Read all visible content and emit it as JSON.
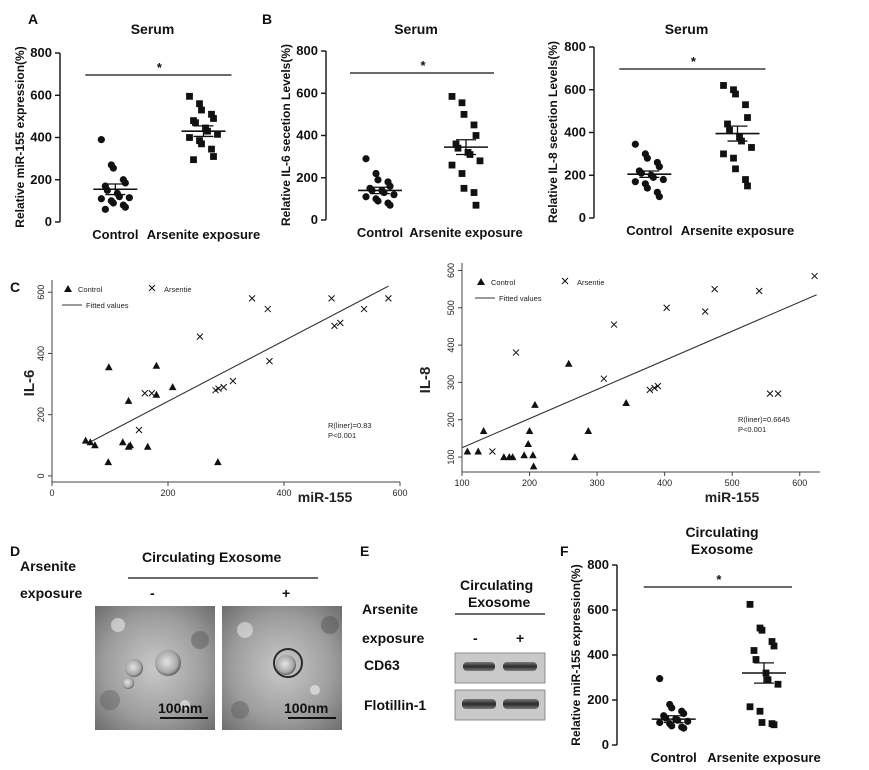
{
  "panel_letters": [
    "A",
    "B",
    "C",
    "D",
    "E",
    "F"
  ],
  "chart_data": [
    {
      "id": "A",
      "type": "scatter",
      "title": "Serum",
      "ylabel": "Relative miR-155 expression(%)",
      "yticks": [
        0,
        200,
        400,
        600,
        800
      ],
      "ylim": [
        0,
        800
      ],
      "categories": [
        "Control",
        "Arsenite exposure"
      ],
      "significance": "*",
      "series": [
        {
          "values": [
            390,
            270,
            255,
            200,
            185,
            170,
            150,
            135,
            120,
            115,
            110,
            100,
            90,
            80,
            70,
            60
          ],
          "mean": 155,
          "sem": 25
        },
        {
          "values": [
            595,
            560,
            530,
            510,
            490,
            480,
            470,
            445,
            430,
            415,
            400,
            385,
            370,
            345,
            310,
            295
          ],
          "mean": 430,
          "sem": 25
        }
      ]
    },
    {
      "id": "B",
      "type": "scatter",
      "title": "Serum",
      "ylabel": "Relative IL-6 secetion Levels(%)",
      "yticks": [
        0,
        200,
        400,
        600,
        800
      ],
      "ylim": [
        0,
        800
      ],
      "categories": [
        "Control",
        "Arsenite exposure"
      ],
      "significance": "*",
      "series": [
        {
          "values": [
            290,
            220,
            190,
            180,
            160,
            150,
            140,
            140,
            130,
            120,
            110,
            100,
            90,
            80,
            70
          ],
          "mean": 140,
          "sem": 15
        },
        {
          "values": [
            585,
            555,
            500,
            450,
            400,
            360,
            340,
            320,
            310,
            280,
            260,
            220,
            150,
            130,
            70
          ],
          "mean": 345,
          "sem": 35
        }
      ]
    },
    {
      "id": "B2",
      "type": "scatter",
      "title": "Serum",
      "ylabel": "Relative IL-8 secetion Levels(%)",
      "yticks": [
        0,
        200,
        400,
        600,
        800
      ],
      "ylim": [
        0,
        800
      ],
      "categories": [
        "Control",
        "Arsenite exposure"
      ],
      "significance": "*",
      "series": [
        {
          "values": [
            345,
            300,
            280,
            260,
            240,
            220,
            210,
            200,
            190,
            180,
            170,
            160,
            140,
            120,
            100
          ],
          "mean": 205,
          "sem": 15
        },
        {
          "values": [
            620,
            600,
            580,
            530,
            470,
            440,
            410,
            380,
            360,
            330,
            300,
            280,
            230,
            180,
            150
          ],
          "mean": 395,
          "sem": 35
        }
      ]
    },
    {
      "id": "C1",
      "type": "scatter",
      "xlabel": "miR-155",
      "ylabel": "IL-6",
      "xticks": [
        0,
        200,
        400,
        600
      ],
      "xlim": [
        0,
        600
      ],
      "yticks": [
        0,
        200,
        400,
        600
      ],
      "ylim": [
        -20,
        640
      ],
      "legend": [
        "Control",
        "Arsentie",
        "Fitted values"
      ],
      "annotation": [
        "R(liner)=0.83",
        "P<0.001"
      ],
      "series": [
        {
          "name": "Control",
          "marker": "triangle",
          "points": [
            [
              58,
              115
            ],
            [
              66,
              110
            ],
            [
              74,
              100
            ],
            [
              97,
              45
            ],
            [
              98,
              355
            ],
            [
              122,
              110
            ],
            [
              132,
              95
            ],
            [
              132,
              245
            ],
            [
              135,
              100
            ],
            [
              165,
              95
            ],
            [
              180,
              265
            ],
            [
              180,
              360
            ],
            [
              208,
              290
            ],
            [
              286,
              45
            ]
          ]
        },
        {
          "name": "Arsentie",
          "marker": "x",
          "points": [
            [
              150,
              150
            ],
            [
              160,
              270
            ],
            [
              172,
              270
            ],
            [
              255,
              455
            ],
            [
              282,
              280
            ],
            [
              287,
              285
            ],
            [
              296,
              290
            ],
            [
              312,
              310
            ],
            [
              345,
              580
            ],
            [
              372,
              545
            ],
            [
              375,
              375
            ],
            [
              482,
              580
            ],
            [
              487,
              490
            ],
            [
              497,
              500
            ],
            [
              538,
              545
            ],
            [
              580,
              580
            ]
          ]
        }
      ],
      "fit": [
        [
          65,
          110
        ],
        [
          580,
          620
        ]
      ]
    },
    {
      "id": "C2",
      "type": "scatter",
      "xlabel": "miR-155",
      "ylabel": "IL-8",
      "xticks": [
        100,
        200,
        300,
        400,
        500,
        600
      ],
      "xlim": [
        100,
        630
      ],
      "yticks": [
        100,
        200,
        300,
        400,
        500,
        600
      ],
      "ylim": [
        60,
        620
      ],
      "legend": [
        "Control",
        "Arsentie",
        "Fitted values"
      ],
      "annotation": [
        "R(liner)=0.6645",
        "P<0.001"
      ],
      "series": [
        {
          "name": "Control",
          "marker": "triangle",
          "points": [
            [
              108,
              115
            ],
            [
              124,
              115
            ],
            [
              132,
              170
            ],
            [
              162,
              100
            ],
            [
              170,
              100
            ],
            [
              175,
              100
            ],
            [
              192,
              105
            ],
            [
              198,
              135
            ],
            [
              200,
              170
            ],
            [
              205,
              105
            ],
            [
              206,
              75
            ],
            [
              208,
              240
            ],
            [
              258,
              350
            ],
            [
              267,
              100
            ],
            [
              287,
              170
            ],
            [
              343,
              245
            ]
          ]
        },
        {
          "name": "Arsentie",
          "marker": "x",
          "points": [
            [
              145,
              115
            ],
            [
              180,
              380
            ],
            [
              310,
              310
            ],
            [
              325,
              455
            ],
            [
              378,
              280
            ],
            [
              385,
              285
            ],
            [
              390,
              290
            ],
            [
              403,
              500
            ],
            [
              460,
              490
            ],
            [
              474,
              550
            ],
            [
              540,
              545
            ],
            [
              556,
              270
            ],
            [
              568,
              270
            ],
            [
              622,
              585
            ]
          ]
        }
      ],
      "fit": [
        [
          100,
          125
        ],
        [
          625,
          535
        ]
      ]
    },
    {
      "id": "F",
      "type": "scatter",
      "title": "Circulating Exosome",
      "ylabel": "Relative miR-155 expression(%)",
      "yticks": [
        0,
        200,
        400,
        600,
        800
      ],
      "ylim": [
        0,
        800
      ],
      "categories": [
        "Control",
        "Arsenite exposure"
      ],
      "significance": "*",
      "series": [
        {
          "values": [
            295,
            180,
            165,
            150,
            140,
            130,
            120,
            115,
            110,
            105,
            100,
            95,
            85,
            80,
            75
          ],
          "mean": 115,
          "sem": 15
        },
        {
          "values": [
            625,
            520,
            510,
            460,
            440,
            420,
            380,
            320,
            290,
            270,
            170,
            150,
            100,
            95,
            90
          ],
          "mean": 320,
          "sem": 45
        }
      ]
    }
  ],
  "panel_d": {
    "treatment_label_1": "Arsenite",
    "treatment_label_2": "exposure",
    "header": "Circulating  Exosome",
    "minus": "-",
    "plus": "+",
    "scale_bar": "100nm"
  },
  "panel_e": {
    "header_1": "Circulating",
    "header_2": "Exosome",
    "treatment_label_1": "Arsenite",
    "treatment_label_2": "exposure",
    "minus": "-",
    "plus": "+",
    "bands": [
      "CD63",
      "Flotillin-1"
    ]
  }
}
